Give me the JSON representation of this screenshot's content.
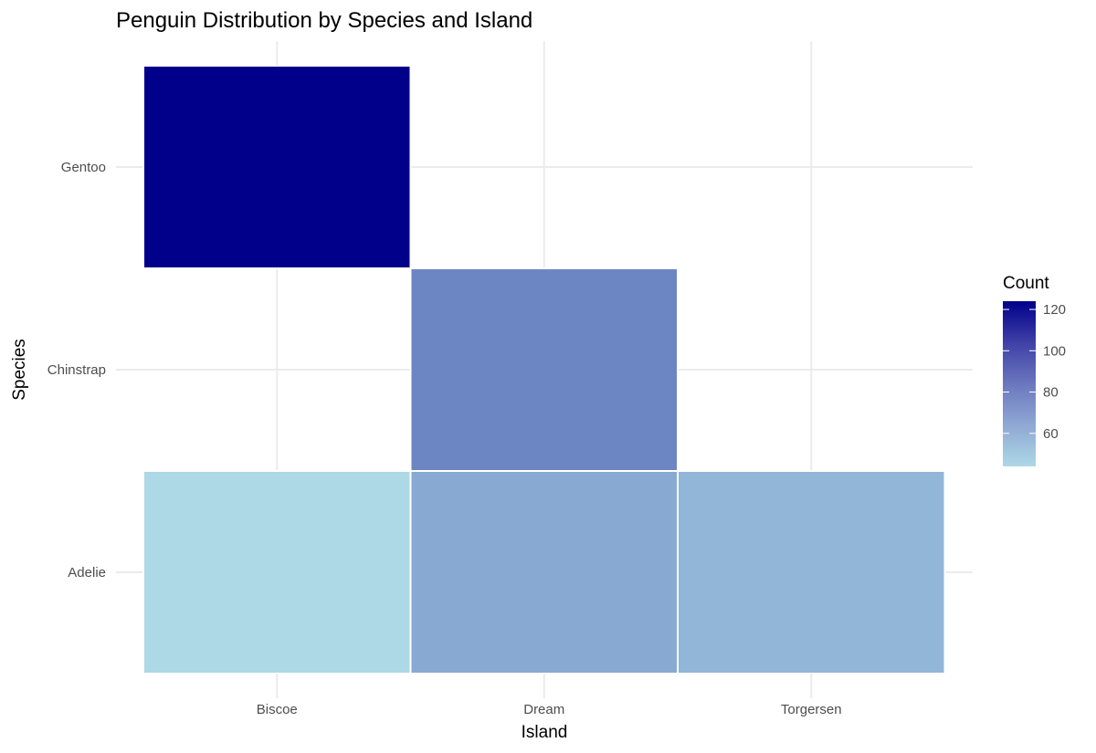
{
  "chart_data": {
    "type": "heatmap",
    "title": "Penguin Distribution by Species and Island",
    "xlabel": "Island",
    "ylabel": "Species",
    "x_categories": [
      "Biscoe",
      "Dream",
      "Torgersen"
    ],
    "y_categories": [
      "Adelie",
      "Chinstrap",
      "Gentoo"
    ],
    "cells": [
      {
        "x": "Biscoe",
        "y": "Adelie",
        "value": 44
      },
      {
        "x": "Dream",
        "y": "Adelie",
        "value": 56
      },
      {
        "x": "Torgersen",
        "y": "Adelie",
        "value": 52
      },
      {
        "x": "Dream",
        "y": "Chinstrap",
        "value": 68
      },
      {
        "x": "Biscoe",
        "y": "Gentoo",
        "value": 124
      }
    ],
    "legend": {
      "title": "Count",
      "ticks": [
        60,
        80,
        100,
        120
      ],
      "tick_labels": [
        "60",
        "80",
        "100",
        "120"
      ],
      "range": [
        44,
        124
      ],
      "low_color": "#ADD8E6",
      "high_color": "#00008B",
      "placement": "right"
    },
    "grid": true
  }
}
